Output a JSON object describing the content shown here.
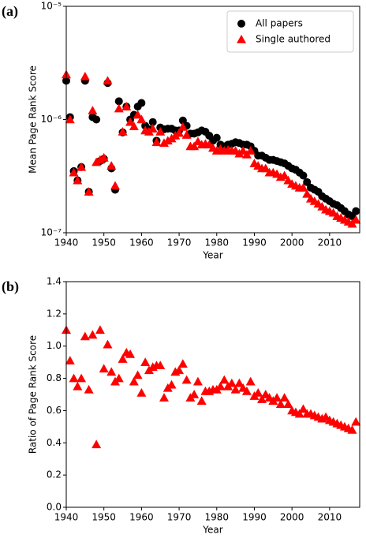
{
  "chart_data": [
    {
      "type": "scatter",
      "label": "(a)",
      "xlabel": "Year",
      "ylabel": "Mean Page Rank Score",
      "log_scale": true,
      "legend": "upper right",
      "xlim": [
        1940,
        2018
      ],
      "xticks": [
        1940,
        1950,
        1960,
        1970,
        1980,
        1990,
        2000,
        2010
      ],
      "ylim": [
        1e-07,
        1e-05
      ],
      "yticks": [
        {
          "value": 1e-07,
          "label": "10⁻⁷"
        },
        {
          "value": 1e-06,
          "label": "10⁻⁶"
        },
        {
          "value": 1e-05,
          "label": "10⁻⁵"
        }
      ],
      "x": [
        1940,
        1941,
        1942,
        1943,
        1944,
        1945,
        1946,
        1947,
        1948,
        1949,
        1950,
        1951,
        1952,
        1953,
        1954,
        1955,
        1956,
        1957,
        1958,
        1959,
        1960,
        1961,
        1962,
        1963,
        1964,
        1965,
        1966,
        1967,
        1968,
        1969,
        1970,
        1971,
        1972,
        1973,
        1974,
        1975,
        1976,
        1977,
        1978,
        1979,
        1980,
        1981,
        1982,
        1983,
        1984,
        1985,
        1986,
        1987,
        1988,
        1989,
        1990,
        1991,
        1992,
        1993,
        1994,
        1995,
        1996,
        1997,
        1998,
        1999,
        2000,
        2001,
        2002,
        2003,
        2004,
        2005,
        2006,
        2007,
        2008,
        2009,
        2010,
        2011,
        2012,
        2013,
        2014,
        2015,
        2016,
        2017
      ],
      "series": [
        {
          "name": "All papers",
          "color": "#000000",
          "marker": "circle",
          "values": [
            2.2e-06,
            1.05e-06,
            3.5e-07,
            2.9e-07,
            3.8e-07,
            2.2e-06,
            2.3e-07,
            1.05e-06,
            1e-06,
            4.3e-07,
            4.5e-07,
            2.1e-06,
            3.7e-07,
            2.4e-07,
            1.45e-06,
            7.7e-07,
            1.3e-06,
            1e-06,
            1.1e-06,
            1.3e-06,
            1.4e-06,
            8.8e-07,
            8.2e-07,
            9.5e-07,
            6.5e-07,
            8.5e-07,
            8.2e-07,
            8.3e-07,
            8.3e-07,
            8e-07,
            8e-07,
            9.8e-07,
            8.8e-07,
            7.5e-07,
            7.5e-07,
            7.7e-07,
            8e-07,
            7.8e-07,
            7.2e-07,
            6.5e-07,
            6.9e-07,
            6e-07,
            5.8e-07,
            6e-07,
            6.1e-07,
            6.3e-07,
            6.2e-07,
            6e-07,
            6e-07,
            5.8e-07,
            5.3e-07,
            4.8e-07,
            4.8e-07,
            4.6e-07,
            4.4e-07,
            4.4e-07,
            4.3e-07,
            4.2e-07,
            4.1e-07,
            3.9e-07,
            3.7e-07,
            3.6e-07,
            3.4e-07,
            3.2e-07,
            2.8e-07,
            2.5e-07,
            2.4e-07,
            2.3e-07,
            2.1e-07,
            2e-07,
            1.9e-07,
            1.8e-07,
            1.75e-07,
            1.65e-07,
            1.55e-07,
            1.45e-07,
            1.4e-07,
            1.55e-07
          ]
        },
        {
          "name": "Single authored",
          "color": "#ff0000",
          "marker": "triangle",
          "values": [
            2.5e-06,
            1e-06,
            3.4e-07,
            2.9e-07,
            3.8e-07,
            2.4e-06,
            2.3e-07,
            1.2e-06,
            4.2e-07,
            4.4e-07,
            4.6e-07,
            2.2e-06,
            3.9e-07,
            2.6e-07,
            1.25e-06,
            7.8e-07,
            1.3e-06,
            9.5e-07,
            8.7e-07,
            1.1e-06,
            1e-06,
            8e-07,
            7.8e-07,
            8.3e-07,
            6.3e-07,
            7.8e-07,
            6.2e-07,
            6.5e-07,
            6.8e-07,
            7.2e-07,
            7.6e-07,
            8.6e-07,
            7.3e-07,
            5.8e-07,
            5.8e-07,
            6.4e-07,
            6e-07,
            6.1e-07,
            6e-07,
            5.6e-07,
            5.3e-07,
            5.5e-07,
            5.3e-07,
            5.4e-07,
            5.3e-07,
            5.3e-07,
            5e-07,
            5.3e-07,
            4.9e-07,
            5.3e-07,
            4.1e-07,
            3.9e-07,
            3.7e-07,
            3.7e-07,
            3.4e-07,
            3.4e-07,
            3.3e-07,
            3.1e-07,
            3.2e-07,
            2.9e-07,
            2.7e-07,
            2.6e-07,
            2.5e-07,
            2.5e-07,
            2.2e-07,
            2e-07,
            1.9e-07,
            1.8e-07,
            1.7e-07,
            1.6e-07,
            1.55e-07,
            1.5e-07,
            1.4e-07,
            1.35e-07,
            1.3e-07,
            1.25e-07,
            1.2e-07,
            1.3e-07
          ]
        }
      ]
    },
    {
      "type": "scatter",
      "label": "(b)",
      "xlabel": "Year",
      "ylabel": "Ratio of Page Rank Score",
      "log_scale": false,
      "xlim": [
        1940,
        2018
      ],
      "xticks": [
        1940,
        1950,
        1960,
        1970,
        1980,
        1990,
        2000,
        2010
      ],
      "ylim": [
        0,
        1.4
      ],
      "yticks": [
        {
          "value": 0,
          "label": "0.0"
        },
        0.2,
        0.4,
        0.6,
        0.8,
        {
          "value": 1,
          "label": "1.0"
        },
        1.2,
        1.4
      ],
      "x": [
        1940,
        1941,
        1942,
        1943,
        1944,
        1945,
        1946,
        1947,
        1948,
        1949,
        1950,
        1951,
        1952,
        1953,
        1954,
        1955,
        1956,
        1957,
        1958,
        1959,
        1960,
        1961,
        1962,
        1963,
        1964,
        1965,
        1966,
        1967,
        1968,
        1969,
        1970,
        1971,
        1972,
        1973,
        1974,
        1975,
        1976,
        1977,
        1978,
        1979,
        1980,
        1981,
        1982,
        1983,
        1984,
        1985,
        1986,
        1987,
        1988,
        1989,
        1990,
        1991,
        1992,
        1993,
        1994,
        1995,
        1996,
        1997,
        1998,
        1999,
        2000,
        2001,
        2002,
        2003,
        2004,
        2005,
        2006,
        2007,
        2008,
        2009,
        2010,
        2011,
        2012,
        2013,
        2014,
        2015,
        2016,
        2017
      ],
      "series": [
        {
          "color": "#ff0000",
          "marker": "triangle",
          "values": [
            1.1,
            0.91,
            0.8,
            0.75,
            0.8,
            1.06,
            0.73,
            1.07,
            0.39,
            1.1,
            0.86,
            1.01,
            0.84,
            0.78,
            0.8,
            0.92,
            0.96,
            0.95,
            0.78,
            0.82,
            0.71,
            0.9,
            0.85,
            0.87,
            0.88,
            0.88,
            0.68,
            0.74,
            0.76,
            0.84,
            0.85,
            0.89,
            0.79,
            0.68,
            0.7,
            0.78,
            0.66,
            0.72,
            0.72,
            0.73,
            0.73,
            0.75,
            0.79,
            0.75,
            0.77,
            0.73,
            0.77,
            0.74,
            0.72,
            0.78,
            0.69,
            0.71,
            0.67,
            0.7,
            0.68,
            0.66,
            0.68,
            0.64,
            0.68,
            0.64,
            0.6,
            0.59,
            0.58,
            0.61,
            0.58,
            0.58,
            0.57,
            0.56,
            0.55,
            0.56,
            0.54,
            0.53,
            0.52,
            0.51,
            0.5,
            0.49,
            0.48,
            0.53
          ]
        }
      ]
    }
  ]
}
